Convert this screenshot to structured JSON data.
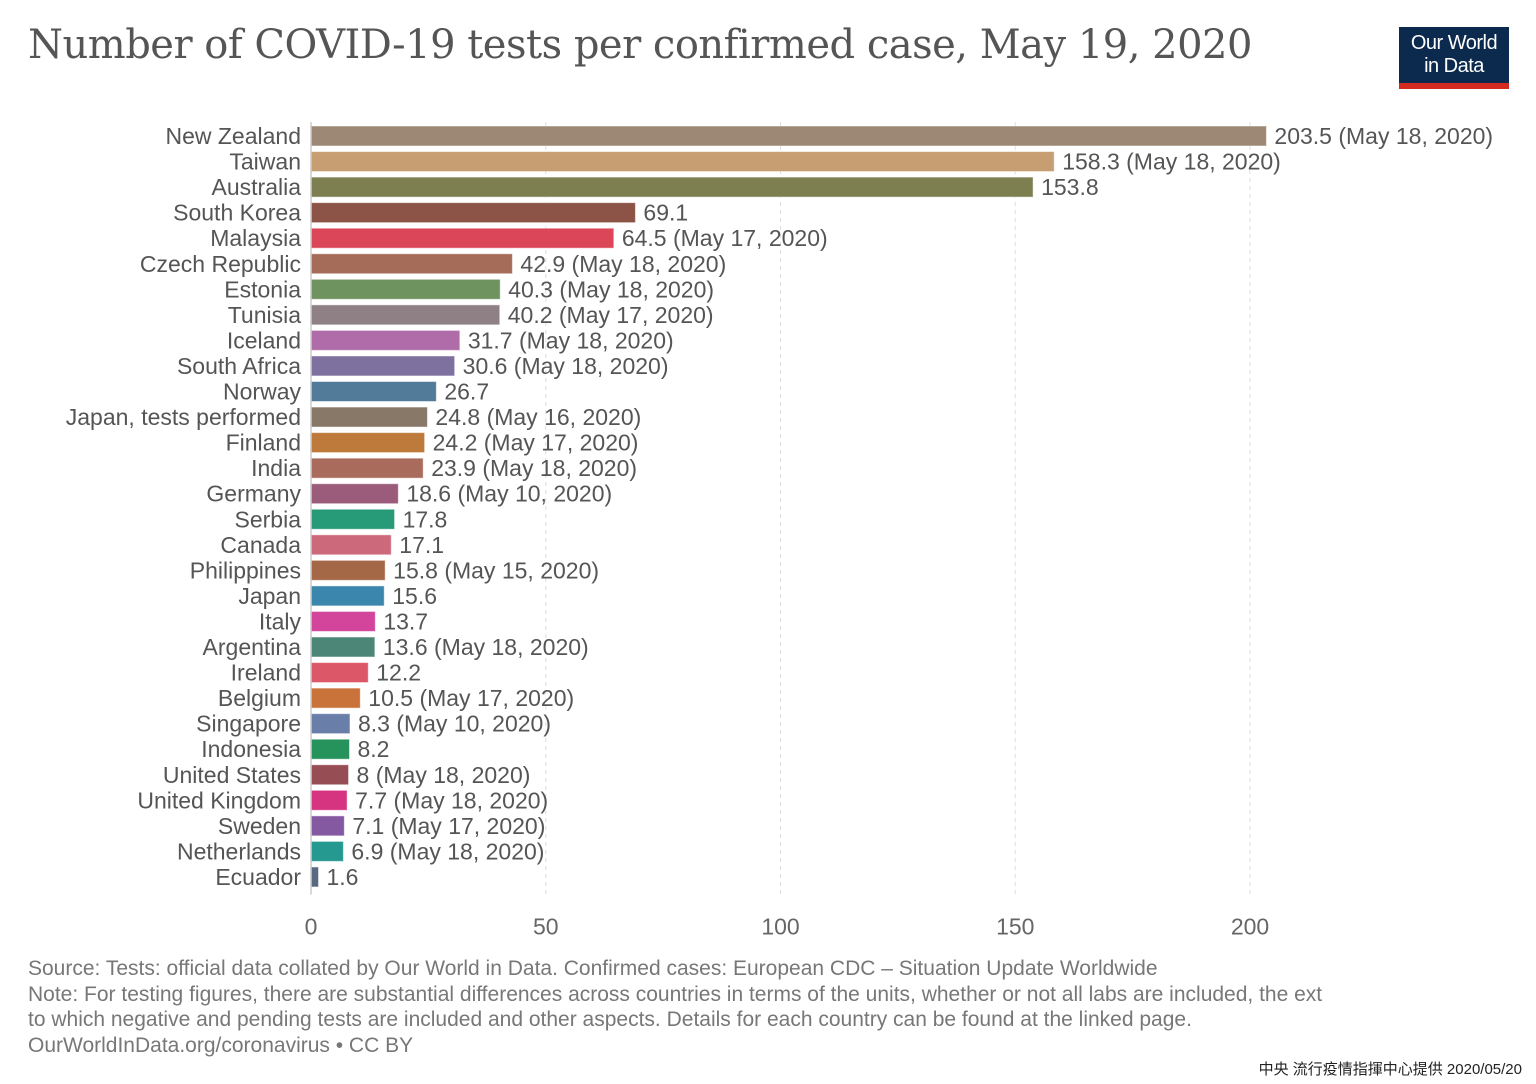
{
  "header": {
    "title": "Number of COVID-19 tests per confirmed case, May 19, 2020",
    "logo_line1": "Our World",
    "logo_line2": "in Data",
    "logo_bg": "#0b2a4e",
    "logo_accent": "#d42b21"
  },
  "chart_data": {
    "type": "bar",
    "orientation": "horizontal",
    "title": "Number of COVID-19 tests per confirmed case, May 19, 2020",
    "xlabel": "",
    "ylabel": "",
    "xlim": [
      0,
      200
    ],
    "xticks": [
      0,
      50,
      100,
      150,
      200
    ],
    "grid": "vertical dashed",
    "bars": [
      {
        "country": "New Zealand",
        "value": 203.5,
        "date": "May 18, 2020",
        "color": "#9c8874"
      },
      {
        "country": "Taiwan",
        "value": 158.3,
        "date": "May 18, 2020",
        "color": "#c69e71"
      },
      {
        "country": "Australia",
        "value": 153.8,
        "date": "",
        "color": "#7d7f51"
      },
      {
        "country": "South Korea",
        "value": 69.1,
        "date": "",
        "color": "#8b5447"
      },
      {
        "country": "Malaysia",
        "value": 64.5,
        "date": "May 17, 2020",
        "color": "#dc4659"
      },
      {
        "country": "Czech Republic",
        "value": 42.9,
        "date": "May 18, 2020",
        "color": "#a66c5a"
      },
      {
        "country": "Estonia",
        "value": 40.3,
        "date": "May 18, 2020",
        "color": "#6f935e"
      },
      {
        "country": "Tunisia",
        "value": 40.2,
        "date": "May 17, 2020",
        "color": "#8e8084"
      },
      {
        "country": "Iceland",
        "value": 31.7,
        "date": "May 18, 2020",
        "color": "#b06ca8"
      },
      {
        "country": "South Africa",
        "value": 30.6,
        "date": "May 18, 2020",
        "color": "#7e71a0"
      },
      {
        "country": "Norway",
        "value": 26.7,
        "date": "",
        "color": "#527a99"
      },
      {
        "country": "Japan, tests performed",
        "value": 24.8,
        "date": "May 16, 2020",
        "color": "#877867"
      },
      {
        "country": "Finland",
        "value": 24.2,
        "date": "May 17, 2020",
        "color": "#bd7a3a"
      },
      {
        "country": "India",
        "value": 23.9,
        "date": "May 18, 2020",
        "color": "#a96b5b"
      },
      {
        "country": "Germany",
        "value": 18.6,
        "date": "May 10, 2020",
        "color": "#9a5c7a"
      },
      {
        "country": "Serbia",
        "value": 17.8,
        "date": "",
        "color": "#279a77"
      },
      {
        "country": "Canada",
        "value": 17.1,
        "date": "",
        "color": "#cc6a7c"
      },
      {
        "country": "Philippines",
        "value": 15.8,
        "date": "May 15, 2020",
        "color": "#a56847"
      },
      {
        "country": "Japan",
        "value": 15.6,
        "date": "",
        "color": "#3a86ad"
      },
      {
        "country": "Italy",
        "value": 13.7,
        "date": "",
        "color": "#d3449b"
      },
      {
        "country": "Argentina",
        "value": 13.6,
        "date": "May 18, 2020",
        "color": "#4b8677"
      },
      {
        "country": "Ireland",
        "value": 12.2,
        "date": "",
        "color": "#dc5868"
      },
      {
        "country": "Belgium",
        "value": 10.5,
        "date": "May 17, 2020",
        "color": "#c9723a"
      },
      {
        "country": "Singapore",
        "value": 8.3,
        "date": "May 10, 2020",
        "color": "#6a7eaa"
      },
      {
        "country": "Indonesia",
        "value": 8.2,
        "date": "",
        "color": "#27935c"
      },
      {
        "country": "United States",
        "value": 8,
        "date": "May 18, 2020",
        "color": "#974d54"
      },
      {
        "country": "United Kingdom",
        "value": 7.7,
        "date": "May 18, 2020",
        "color": "#d63481"
      },
      {
        "country": "Sweden",
        "value": 7.1,
        "date": "May 17, 2020",
        "color": "#8459a2"
      },
      {
        "country": "Netherlands",
        "value": 6.9,
        "date": "May 18, 2020",
        "color": "#259890"
      },
      {
        "country": "Ecuador",
        "value": 1.6,
        "date": "",
        "color": "#586a82"
      }
    ]
  },
  "footer": {
    "source": "Source: Tests: official data collated by Our World in Data. Confirmed cases: European CDC – Situation Update Worldwide",
    "note_line1": "Note: For testing figures, there are substantial differences across countries in terms of the units, whether or not all labs are included, the ext",
    "note_line2": "to which negative and pending tests are included and other aspects. Details for each country can be found at the linked page.",
    "url_license": "OurWorldInData.org/coronavirus • CC BY",
    "credit": "中央 流行疫情指揮中心提供 2020/05/20"
  }
}
